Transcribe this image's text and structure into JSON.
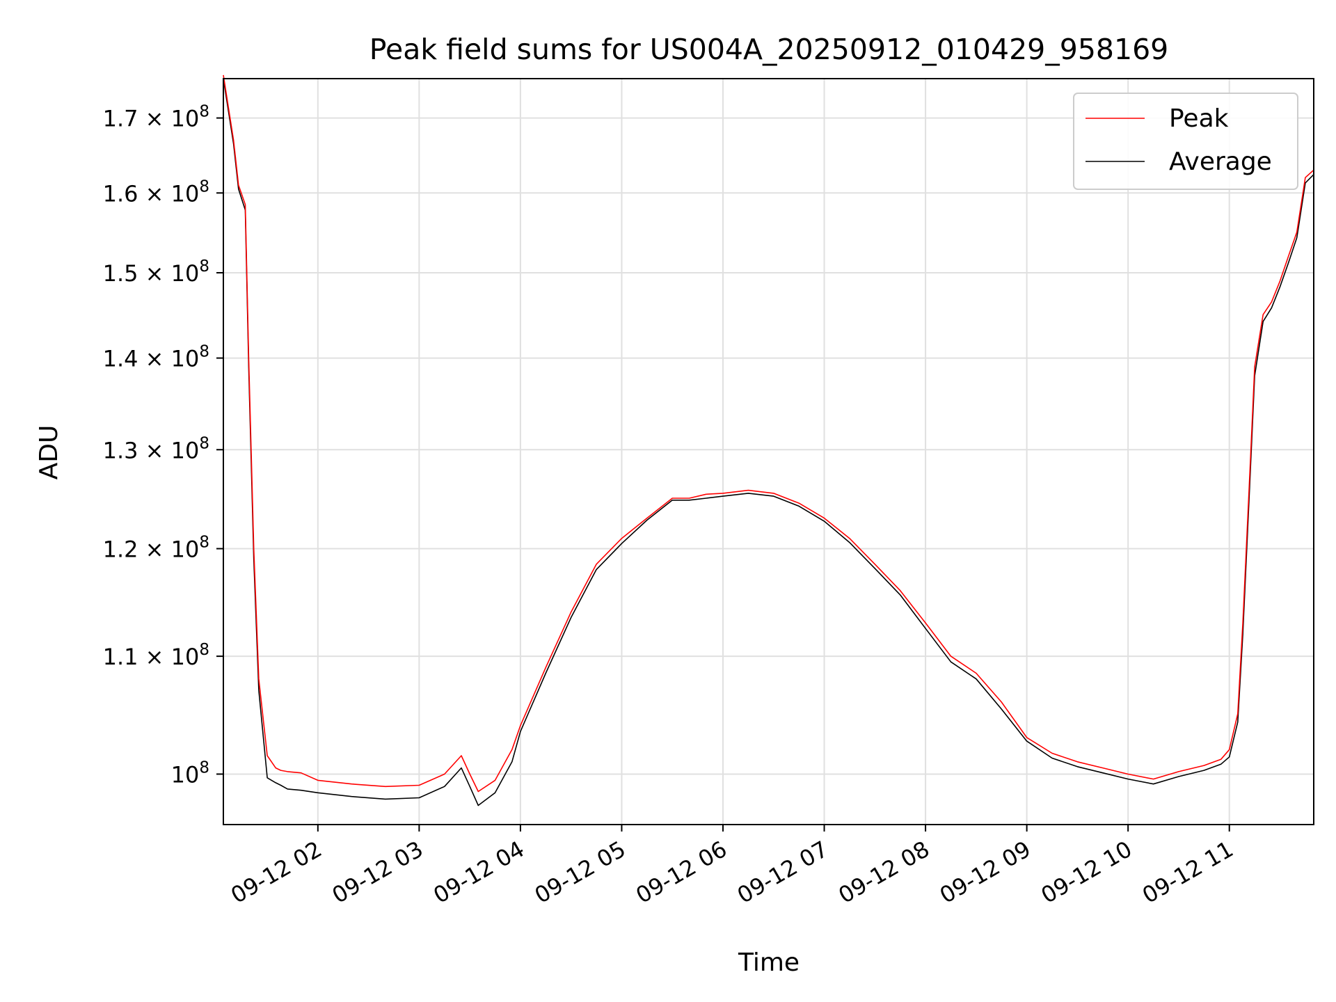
{
  "chart_data": {
    "type": "line",
    "title": "Peak field sums for US004A_20250912_010429_958169",
    "xlabel": "Time",
    "ylabel": "ADU",
    "y_scale": "log",
    "ylim": [
      96000000,
      175500000
    ],
    "xlim": [
      "2025-09-12 01:04",
      "2025-09-12 11:50"
    ],
    "grid": true,
    "legend_position": "top-right",
    "x_ticks": [
      {
        "t": "2025-09-12 02:00",
        "label": "09-12 02"
      },
      {
        "t": "2025-09-12 03:00",
        "label": "09-12 03"
      },
      {
        "t": "2025-09-12 04:00",
        "label": "09-12 04"
      },
      {
        "t": "2025-09-12 05:00",
        "label": "09-12 05"
      },
      {
        "t": "2025-09-12 06:00",
        "label": "09-12 06"
      },
      {
        "t": "2025-09-12 07:00",
        "label": "09-12 07"
      },
      {
        "t": "2025-09-12 08:00",
        "label": "09-12 08"
      },
      {
        "t": "2025-09-12 09:00",
        "label": "09-12 09"
      },
      {
        "t": "2025-09-12 10:00",
        "label": "09-12 10"
      },
      {
        "t": "2025-09-12 11:00",
        "label": "09-12 11"
      }
    ],
    "y_ticks": [
      {
        "v": 100000000,
        "mant": "",
        "exp": "8"
      },
      {
        "v": 110000000,
        "mant": "1.1",
        "exp": "8"
      },
      {
        "v": 120000000,
        "mant": "1.2",
        "exp": "8"
      },
      {
        "v": 130000000,
        "mant": "1.3",
        "exp": "8"
      },
      {
        "v": 140000000,
        "mant": "1.4",
        "exp": "8"
      },
      {
        "v": 150000000,
        "mant": "1.5",
        "exp": "8"
      },
      {
        "v": 160000000,
        "mant": "1.6",
        "exp": "8"
      },
      {
        "v": 170000000,
        "mant": "1.7",
        "exp": "8"
      }
    ],
    "series": [
      {
        "name": "Peak",
        "color": "#ff0000",
        "x": [
          "2025-09-12 01:04",
          "2025-09-12 01:10",
          "2025-09-12 01:13",
          "2025-09-12 01:17",
          "2025-09-12 01:19",
          "2025-09-12 01:22",
          "2025-09-12 01:25",
          "2025-09-12 01:30",
          "2025-09-12 01:35",
          "2025-09-12 01:38",
          "2025-09-12 01:42",
          "2025-09-12 01:50",
          "2025-09-12 02:00",
          "2025-09-12 02:20",
          "2025-09-12 02:40",
          "2025-09-12 03:00",
          "2025-09-12 03:15",
          "2025-09-12 03:25",
          "2025-09-12 03:30",
          "2025-09-12 03:35",
          "2025-09-12 03:45",
          "2025-09-12 03:55",
          "2025-09-12 04:00",
          "2025-09-12 04:15",
          "2025-09-12 04:30",
          "2025-09-12 04:45",
          "2025-09-12 05:00",
          "2025-09-12 05:15",
          "2025-09-12 05:30",
          "2025-09-12 05:40",
          "2025-09-12 05:50",
          "2025-09-12 06:00",
          "2025-09-12 06:15",
          "2025-09-12 06:30",
          "2025-09-12 06:45",
          "2025-09-12 07:00",
          "2025-09-12 07:15",
          "2025-09-12 07:30",
          "2025-09-12 07:45",
          "2025-09-12 08:00",
          "2025-09-12 08:15",
          "2025-09-12 08:30",
          "2025-09-12 08:45",
          "2025-09-12 09:00",
          "2025-09-12 09:15",
          "2025-09-12 09:30",
          "2025-09-12 09:45",
          "2025-09-12 10:00",
          "2025-09-12 10:15",
          "2025-09-12 10:30",
          "2025-09-12 10:45",
          "2025-09-12 10:55",
          "2025-09-12 11:00",
          "2025-09-12 11:05",
          "2025-09-12 11:08",
          "2025-09-12 11:12",
          "2025-09-12 11:15",
          "2025-09-12 11:20",
          "2025-09-12 11:25",
          "2025-09-12 11:30",
          "2025-09-12 11:35",
          "2025-09-12 11:40",
          "2025-09-12 11:45",
          "2025-09-12 11:50"
        ],
        "y": [
          176000000,
          167000000,
          161000000,
          158500000,
          140000000,
          120000000,
          108000000,
          101500000,
          100500000,
          100300000,
          100200000,
          100100000,
          99500000,
          99200000,
          99000000,
          99100000,
          100000000,
          101500000,
          100000000,
          98600000,
          99500000,
          102000000,
          104000000,
          109000000,
          114000000,
          118500000,
          121000000,
          123000000,
          125000000,
          125000000,
          125400000,
          125500000,
          125800000,
          125500000,
          124500000,
          123000000,
          121000000,
          118500000,
          116000000,
          113000000,
          110000000,
          108500000,
          106000000,
          103000000,
          101700000,
          101000000,
          100500000,
          100000000,
          99600000,
          100200000,
          100700000,
          101200000,
          102000000,
          105000000,
          113000000,
          127000000,
          139000000,
          145000000,
          146500000,
          149000000,
          152000000,
          155000000,
          162000000,
          163000000
        ]
      },
      {
        "name": "Average",
        "color": "#000000",
        "x": [
          "2025-09-12 01:04",
          "2025-09-12 01:10",
          "2025-09-12 01:13",
          "2025-09-12 01:17",
          "2025-09-12 01:19",
          "2025-09-12 01:22",
          "2025-09-12 01:25",
          "2025-09-12 01:30",
          "2025-09-12 01:35",
          "2025-09-12 01:38",
          "2025-09-12 01:42",
          "2025-09-12 01:50",
          "2025-09-12 02:00",
          "2025-09-12 02:20",
          "2025-09-12 02:40",
          "2025-09-12 03:00",
          "2025-09-12 03:15",
          "2025-09-12 03:25",
          "2025-09-12 03:30",
          "2025-09-12 03:35",
          "2025-09-12 03:45",
          "2025-09-12 03:55",
          "2025-09-12 04:00",
          "2025-09-12 04:15",
          "2025-09-12 04:30",
          "2025-09-12 04:45",
          "2025-09-12 05:00",
          "2025-09-12 05:15",
          "2025-09-12 05:30",
          "2025-09-12 05:40",
          "2025-09-12 05:50",
          "2025-09-12 06:00",
          "2025-09-12 06:15",
          "2025-09-12 06:30",
          "2025-09-12 06:45",
          "2025-09-12 07:00",
          "2025-09-12 07:15",
          "2025-09-12 07:30",
          "2025-09-12 07:45",
          "2025-09-12 08:00",
          "2025-09-12 08:15",
          "2025-09-12 08:30",
          "2025-09-12 08:45",
          "2025-09-12 09:00",
          "2025-09-12 09:15",
          "2025-09-12 09:30",
          "2025-09-12 09:45",
          "2025-09-12 10:00",
          "2025-09-12 10:15",
          "2025-09-12 10:30",
          "2025-09-12 10:45",
          "2025-09-12 10:55",
          "2025-09-12 11:00",
          "2025-09-12 11:05",
          "2025-09-12 11:08",
          "2025-09-12 11:12",
          "2025-09-12 11:15",
          "2025-09-12 11:20",
          "2025-09-12 11:25",
          "2025-09-12 11:30",
          "2025-09-12 11:35",
          "2025-09-12 11:40",
          "2025-09-12 11:45",
          "2025-09-12 11:50"
        ],
        "y": [
          175500000,
          166500000,
          160500000,
          157800000,
          139000000,
          119000000,
          107000000,
          99700000,
          99300000,
          99100000,
          98800000,
          98700000,
          98500000,
          98200000,
          98000000,
          98100000,
          99000000,
          100500000,
          99000000,
          97500000,
          98500000,
          101000000,
          103500000,
          108500000,
          113500000,
          118000000,
          120500000,
          122800000,
          124800000,
          124800000,
          125000000,
          125200000,
          125500000,
          125200000,
          124200000,
          122700000,
          120600000,
          118100000,
          115600000,
          112500000,
          109500000,
          108000000,
          105400000,
          102700000,
          101300000,
          100600000,
          100100000,
          99600000,
          99200000,
          99800000,
          100300000,
          100800000,
          101400000,
          104300000,
          112000000,
          126000000,
          138000000,
          144200000,
          145800000,
          148300000,
          151200000,
          154300000,
          161300000,
          162400000
        ]
      }
    ]
  }
}
